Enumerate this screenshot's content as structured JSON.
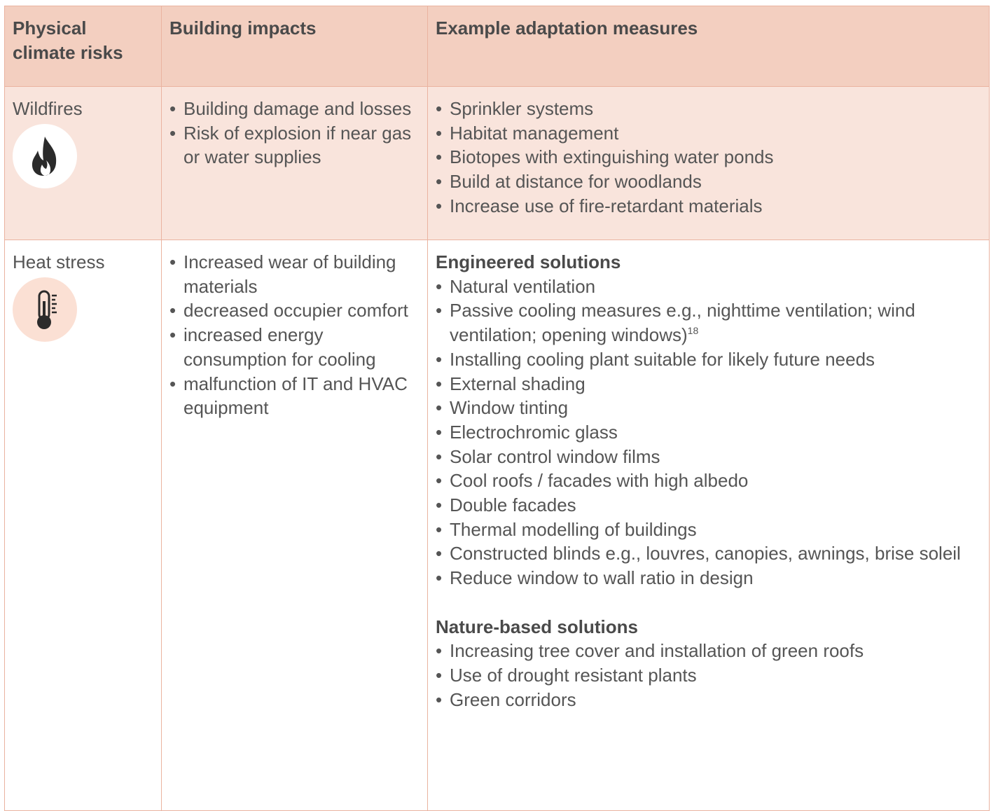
{
  "table": {
    "columns": [
      "Physical climate risks",
      "Building impacts",
      "Example adaptation measures"
    ],
    "rows": [
      {
        "risk": "Wildfires",
        "impacts": [
          "Building damage and losses",
          "Risk of explosion if near gas or water supplies"
        ],
        "measures": [
          {
            "items": [
              "Sprinkler systems",
              "Habitat management",
              "Biotopes with extinguishing water ponds",
              "Build at distance for woodlands",
              "Increase use of fire-retardant materials"
            ]
          }
        ]
      },
      {
        "risk": "Heat stress",
        "impacts": [
          "Increased wear of building materials",
          "decreased occupier comfort",
          "increased energy consumption for cooling",
          "malfunction of IT and HVAC equipment"
        ],
        "measures": [
          {
            "heading": "Engineered solutions",
            "items": [
              "Natural ventilation",
              {
                "text": "Passive cooling measures e.g., nighttime ventilation; wind ventilation; opening windows)",
                "sup": "18"
              },
              "Installing cooling plant suitable for likely future needs",
              "External shading",
              "Window tinting",
              "Electrochromic glass",
              "Solar control window films",
              "Cool roofs / facades with high albedo",
              "Double facades",
              "Thermal modelling of buildings",
              "Constructed blinds e.g., louvres, canopies, awnings, brise soleil",
              "Reduce window to wall ratio in design"
            ]
          },
          {
            "heading": "Nature-based solutions",
            "items": [
              "Increasing tree cover and installation of green roofs",
              "Use of drought resistant plants",
              "Green corridors"
            ]
          }
        ]
      }
    ]
  }
}
